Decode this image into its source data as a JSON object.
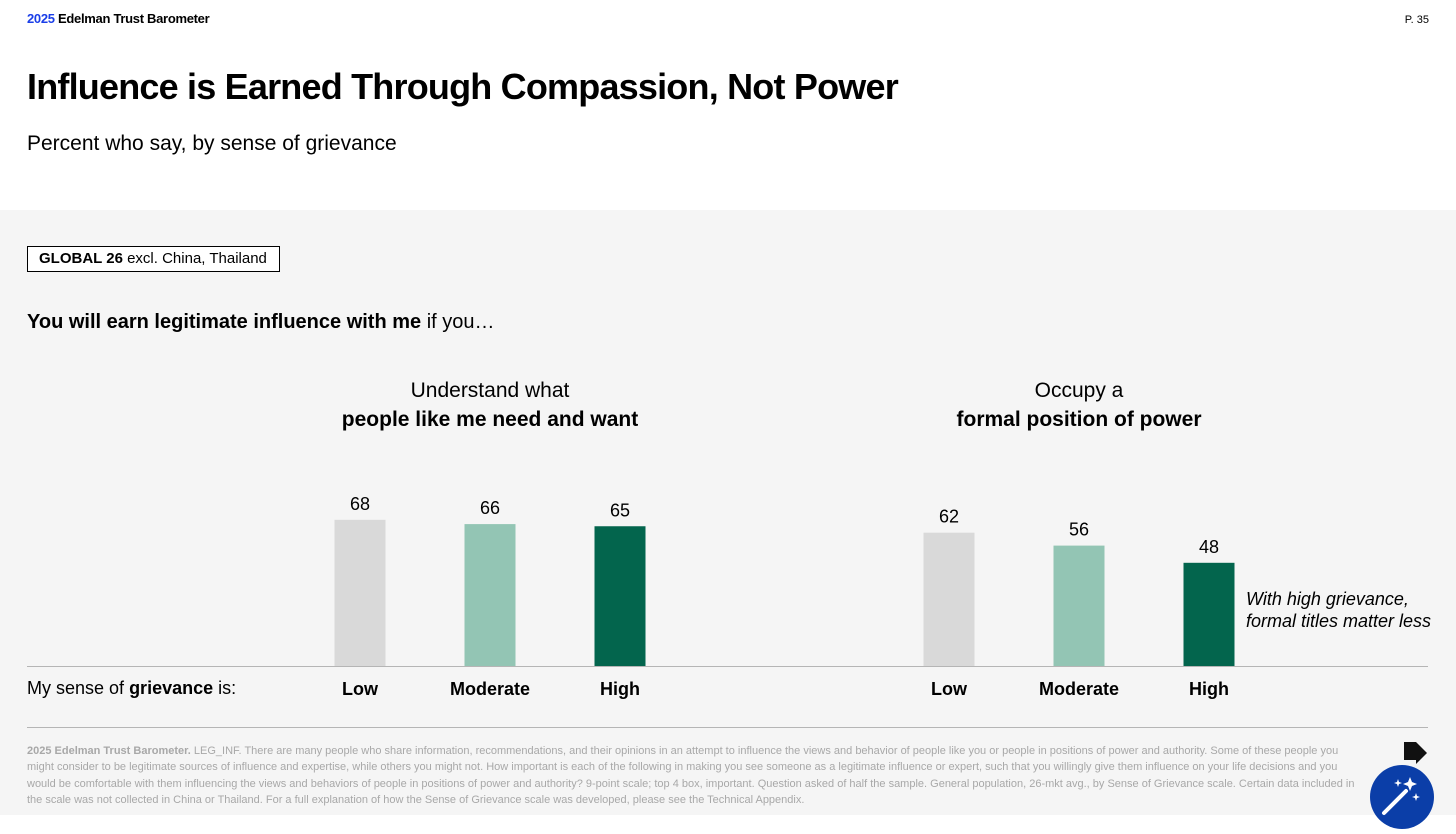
{
  "header": {
    "brand_year": "2025",
    "brand_name": "Edelman Trust Barometer",
    "page_number": "P. 35"
  },
  "title": "Influence is Earned Through Compassion, Not Power",
  "subtitle": "Percent who say, by sense of grievance",
  "scope_tag": {
    "bold": "GLOBAL 26",
    "rest": "excl. China, Thailand"
  },
  "lead": {
    "bold": "You will earn legitimate influence with me",
    "rest": "if you…"
  },
  "row_label": {
    "pre": "My sense of",
    "bold": "grievance",
    "post": "is:"
  },
  "annotation": {
    "line1": "With high grievance,",
    "line2": "formal titles matter less"
  },
  "colors": {
    "low": "#d9d9d9",
    "moderate": "#93c5b4",
    "high": "#03654d",
    "brand_blue": "#1a3ee8"
  },
  "chart_data": [
    {
      "type": "bar",
      "title_line1": "Understand what",
      "title_line2": "people like me need and want",
      "categories": [
        "Low",
        "Moderate",
        "High"
      ],
      "values": [
        68,
        66,
        65
      ]
    },
    {
      "type": "bar",
      "title_line1": "Occupy a",
      "title_line2": "formal position of power",
      "categories": [
        "Low",
        "Moderate",
        "High"
      ],
      "values": [
        62,
        56,
        48
      ]
    }
  ],
  "footnote": {
    "source": "2025 Edelman Trust Barometer.",
    "text": "LEG_INF. There are many people who share information, recommendations, and their opinions in an attempt to influence the views and behavior of people like you or people in positions of power and authority. Some of these people you might consider to be legitimate sources of influence and expertise, while others you might not. How important is each of the following in making you see someone as a legitimate influence or expert, such that you willingly give them influence on your life decisions and you would be comfortable with them influencing the views and behaviors of people in positions of power and authority? 9-point scale; top 4 box, important. Question asked of half the sample. General population, 26-mkt avg., by Sense of Grievance scale. Certain data included in the scale was not collected in China or Thailand. For a full explanation of how the Sense of Grievance scale was developed, please see the Technical Appendix."
  },
  "icons": {
    "assistant": "magic-wand-icon",
    "pin": "pin-arrow-icon"
  }
}
